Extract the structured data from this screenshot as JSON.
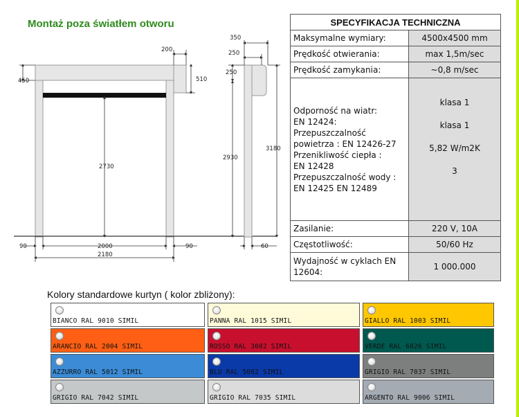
{
  "title": "Montaż poza światłem otworu",
  "drawing": {
    "dims": {
      "d200": "200",
      "d450": "450",
      "d510": "510",
      "d2730": "2730",
      "d90a": "90",
      "d2000": "2000",
      "d90b": "90",
      "d2180": "2180",
      "d350": "350",
      "d250a": "250",
      "d250b": "250",
      "d2930": "2930",
      "d3180": "3180",
      "d60": "60"
    }
  },
  "spec": {
    "header": "SPECYFIKACJA TECHNICZNA",
    "rows": [
      {
        "label": "Maksymalne wymiary:",
        "value": "4500x4500 mm"
      },
      {
        "label": "Prędkość otwierania:",
        "value": "max 1,5m/sec"
      },
      {
        "label": "Prędkość zamykania:",
        "value": "~0,8 m/sec"
      }
    ],
    "big": {
      "labels": [
        "Odporność na wiatr:",
        "EN 12424:",
        "Przepuszczalność",
        "powietrza : EN 12426-27",
        "Przenikliwość ciepła   :",
        "EN 12428",
        "Przepuszczalność wody :",
        "EN 12425 EN 12489"
      ],
      "values": [
        "klasa 1",
        "klasa 1",
        "5,82 W/m2K",
        "3"
      ]
    },
    "rows2": [
      {
        "label": "Zasilanie:",
        "value": "220 V,  10A"
      },
      {
        "label": "Częstotliwość:",
        "value": "50/60 Hz"
      },
      {
        "label": "Wydajność w cyklach EN 12604:",
        "value": "1 000.000"
      }
    ]
  },
  "colors_title": "Kolory standardowe kurtyn  ( kolor zbliżony):",
  "colors": [
    {
      "name": "BIANCO RAL 9010 SIMIL",
      "color": "#ffffff",
      "text": "#111111"
    },
    {
      "name": "PANNA RAL 1015 SIMIL",
      "color": "#fffbd9",
      "text": "#111111"
    },
    {
      "name": "GIALLO RAL 1003 SIMIL",
      "color": "#ffc700",
      "text": "#111111"
    },
    {
      "name": "ARANCIO RAL 2004 SIMIL",
      "color": "#ff5f14",
      "text": "#111111"
    },
    {
      "name": "ROSSO RAL 3002 SIMIL",
      "color": "#c8102e",
      "text": "#111111"
    },
    {
      "name": "VERDE RAL 6026 SIMIL",
      "color": "#00594f",
      "text": "#111111"
    },
    {
      "name": "AZZURRO RAL 5012 SIMIL",
      "color": "#3b8bd6",
      "text": "#111111"
    },
    {
      "name": "BLU RAL 5002 SIMIL",
      "color": "#0a3aa8",
      "text": "#111111"
    },
    {
      "name": "GRIGIO RAL 7037 SIMIL",
      "color": "#7d7f7f",
      "text": "#111111"
    },
    {
      "name": "GRIGIO RAL 7042 SIMIL",
      "color": "#c4c8c8",
      "text": "#111111"
    },
    {
      "name": "GRIGIO RAL 7035 SIMIL",
      "color": "#dcdcdc",
      "text": "#111111"
    },
    {
      "name": "ARGENTO RAL 9006 SIMIL",
      "color": "#a4abb3",
      "text": "#111111"
    }
  ]
}
